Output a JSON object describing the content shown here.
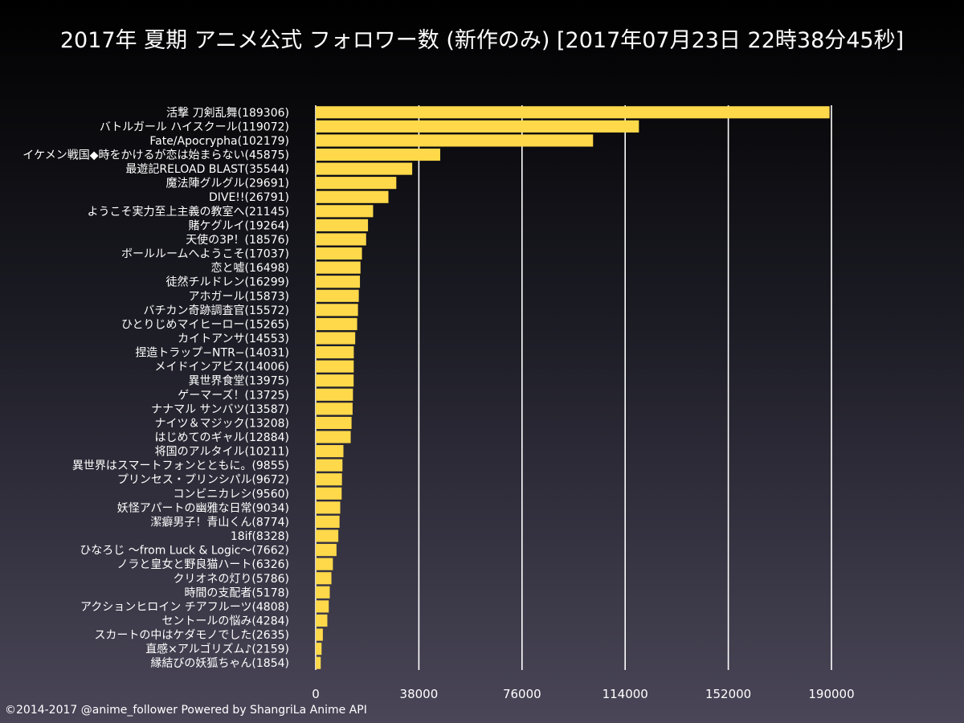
{
  "colors": {
    "bar": "#ffd94a",
    "grid": "#ffffff",
    "text": "#ffffff"
  },
  "credit": "©2014-2017 @anime_follower Powered by ShangriLa Anime API",
  "chart_data": {
    "type": "bar",
    "orientation": "horizontal",
    "title": "2017年 夏期 アニメ公式 フォロワー数 (新作のみ) [2017年07月23日 22時38分45秒]",
    "xlabel": "",
    "ylabel": "",
    "xlim": [
      0,
      190000
    ],
    "xticks": [
      0,
      38000,
      76000,
      114000,
      152000,
      190000
    ],
    "xtick_labels": [
      "0",
      "38000",
      "76000",
      "114000",
      "152000",
      "190000"
    ],
    "grid": true,
    "categories": [
      "活撃 刀剣乱舞(189306)",
      "バトルガール ハイスクール(119072)",
      "Fate/Apocrypha(102179)",
      "イケメン戦国◆時をかけるが恋は始まらない(45875)",
      "最遊記RELOAD BLAST(35544)",
      "魔法陣グルグル(29691)",
      "DIVE!!(26791)",
      "ようこそ実力至上主義の教室へ(21145)",
      "賭ケグルイ(19264)",
      "天使の3P！(18576)",
      "ボールルームへようこそ(17037)",
      "恋と嘘(16498)",
      "徒然チルドレン(16299)",
      "アホガール(15873)",
      "バチカン奇跡調査官(15572)",
      "ひとりじめマイヒーロー(15265)",
      "カイトアンサ(14553)",
      "捏造トラップ−NTR−(14031)",
      "メイドインアビス(14006)",
      "異世界食堂(13975)",
      "ゲーマーズ！(13725)",
      "ナナマル サンバツ(13587)",
      "ナイツ＆マジック(13208)",
      "はじめてのギャル(12884)",
      "将国のアルタイル(10211)",
      "異世界はスマートフォンとともに。(9855)",
      "プリンセス・プリンシパル(9672)",
      "コンビニカレシ(9560)",
      "妖怪アパートの幽雅な日常(9034)",
      "潔癖男子！青山くん(8774)",
      "18if(8328)",
      "ひなろじ 〜from Luck & Logic〜(7662)",
      "ノラと皇女と野良猫ハート(6326)",
      "クリオネの灯り(5786)",
      "時間の支配者(5178)",
      "アクションヒロイン チアフルーツ(4808)",
      "セントールの悩み(4284)",
      "スカートの中はケダモノでした(2635)",
      "直感×アルゴリズム♪(2159)",
      "縁結びの妖狐ちゃん(1854)"
    ],
    "values": [
      189306,
      119072,
      102179,
      45875,
      35544,
      29691,
      26791,
      21145,
      19264,
      18576,
      17037,
      16498,
      16299,
      15873,
      15572,
      15265,
      14553,
      14031,
      14006,
      13975,
      13725,
      13587,
      13208,
      12884,
      10211,
      9855,
      9672,
      9560,
      9034,
      8774,
      8328,
      7662,
      6326,
      5786,
      5178,
      4808,
      4284,
      2635,
      2159,
      1854
    ]
  }
}
